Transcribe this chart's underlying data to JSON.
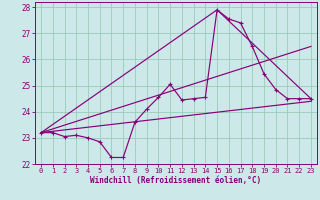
{
  "xlabel": "Windchill (Refroidissement éolien,°C)",
  "bg_color": "#cce8e8",
  "grid_color": "#99ccbb",
  "line_color": "#880077",
  "xlim": [
    -0.5,
    23.5
  ],
  "ylim": [
    22.0,
    28.2
  ],
  "yticks": [
    22,
    23,
    24,
    25,
    26,
    27,
    28
  ],
  "xticks": [
    0,
    1,
    2,
    3,
    4,
    5,
    6,
    7,
    8,
    9,
    10,
    11,
    12,
    13,
    14,
    15,
    16,
    17,
    18,
    19,
    20,
    21,
    22,
    23
  ],
  "line1_x": [
    0,
    1,
    2,
    3,
    4,
    5,
    6,
    7,
    8,
    9,
    10,
    11,
    12,
    13,
    14,
    15,
    16,
    17,
    18,
    19,
    20,
    21,
    22,
    23
  ],
  "line1_y": [
    23.2,
    23.2,
    23.05,
    23.1,
    23.0,
    22.85,
    22.25,
    22.25,
    23.6,
    24.1,
    24.55,
    25.05,
    24.45,
    24.5,
    24.55,
    27.9,
    27.55,
    27.4,
    26.5,
    25.45,
    24.85,
    24.5,
    24.5,
    24.5
  ],
  "line2_x": [
    0,
    23
  ],
  "line2_y": [
    23.2,
    26.5
  ],
  "line3_x": [
    0,
    23
  ],
  "line3_y": [
    23.2,
    24.4
  ],
  "line4_x": [
    0,
    15,
    23
  ],
  "line4_y": [
    23.2,
    27.9,
    24.5
  ]
}
